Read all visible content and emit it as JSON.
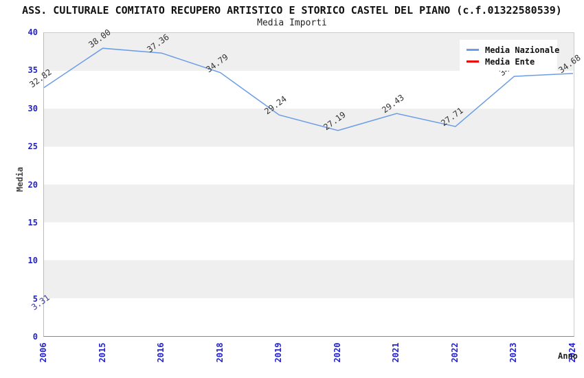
{
  "header": {
    "title": "ASS. CULTURALE COMITATO RECUPERO ARTISTICO E STORICO CASTEL DEL PIANO (c.f.01322580539)",
    "subtitle": "Media Importi"
  },
  "legend": {
    "items": [
      {
        "label": "Media Nazionale",
        "color": "#6b9ce8"
      },
      {
        "label": "Media Ente",
        "color": "#ee0000"
      }
    ]
  },
  "chart_data": {
    "type": "line",
    "title": "ASS. CULTURALE COMITATO RECUPERO ARTISTICO E STORICO CASTEL DEL PIANO (c.f.01322580539)",
    "subtitle": "Media Importi",
    "xlabel": "Anno",
    "ylabel": "Media",
    "categories": [
      "2006",
      "2015",
      "2016",
      "2018",
      "2019",
      "2020",
      "2021",
      "2022",
      "2023",
      "2024"
    ],
    "series": [
      {
        "name": "Media Nazionale",
        "color": "#6b9ce8",
        "values": [
          32.82,
          38.0,
          37.36,
          34.79,
          29.24,
          27.19,
          29.43,
          27.71,
          34.3,
          34.68
        ],
        "labels": [
          "32.82",
          "38.00",
          "37.36",
          "34.79",
          "29.24",
          "27.19",
          "29.43",
          "27.71",
          "34.30",
          "34.68"
        ],
        "label_color": "#333333"
      },
      {
        "name": "Media Ente",
        "color": "#ee0000",
        "values": [
          3.31,
          null,
          null,
          null,
          null,
          null,
          null,
          null,
          null,
          null
        ],
        "labels": [
          "3.31",
          "",
          "",
          "",
          "",
          "",
          "",
          "",
          "",
          ""
        ],
        "label_color": "#3c3c9c"
      }
    ],
    "ylim": [
      0,
      40
    ],
    "yticks": [
      0,
      5,
      10,
      15,
      20,
      25,
      30,
      35,
      40
    ],
    "legend_position": "top-right",
    "grid": "alternating-horizontal-bands",
    "band_color": "#efefef",
    "tick_color": "#2222cc"
  }
}
